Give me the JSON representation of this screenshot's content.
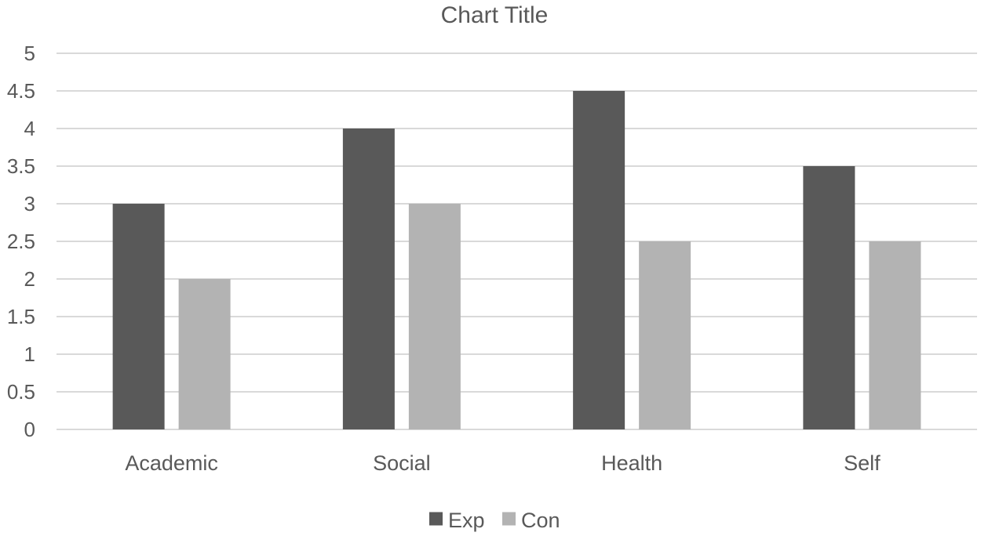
{
  "chart_data": {
    "type": "bar",
    "title": "Chart Title",
    "categories": [
      "Academic",
      "Social",
      "Health",
      "Self"
    ],
    "series": [
      {
        "name": "Exp",
        "values": [
          3,
          4,
          4.5,
          3.5
        ],
        "color": "#595959"
      },
      {
        "name": "Con",
        "values": [
          2,
          3,
          2.5,
          2.5
        ],
        "color": "#b3b3b3"
      }
    ],
    "xlabel": "",
    "ylabel": "",
    "ylim": [
      0,
      5
    ],
    "yticks": [
      "0",
      "0.5",
      "1",
      "1.5",
      "2",
      "2.5",
      "3",
      "3.5",
      "4",
      "4.5",
      "5"
    ],
    "grid": true,
    "gridline_color": "#d9d9d9",
    "text_color": "#595959",
    "legend_position": "bottom"
  }
}
